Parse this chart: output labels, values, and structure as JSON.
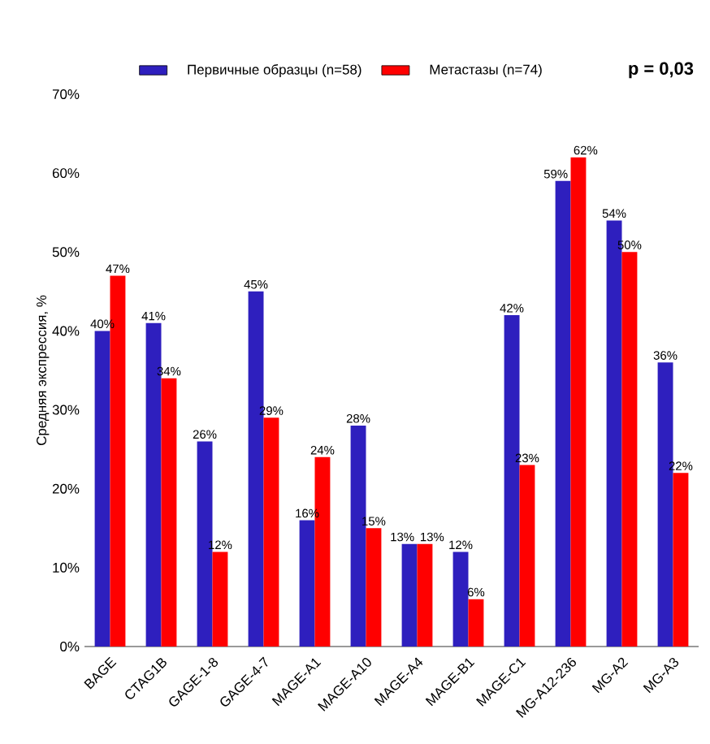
{
  "chart_data": {
    "type": "bar",
    "ylabel": "Средняя экспрессия, %",
    "categories": [
      "BAGE",
      "CTAG1B",
      "GAGE-1-8",
      "GAGE-4-7",
      "MAGE-A1",
      "MAGE-A10",
      "MAGE-A4",
      "MAGE-B1",
      "MAGE-C1",
      "MG-A12-236",
      "MG-A2",
      "MG-A3"
    ],
    "series": [
      {
        "name": "Первичные образцы (n=58)",
        "color": "#2e1fbe",
        "values": [
          40,
          41,
          26,
          45,
          16,
          28,
          13,
          12,
          42,
          59,
          54,
          36
        ],
        "value_labels": [
          "40%",
          "41%",
          "26%",
          "45%",
          "16%",
          "28%",
          "13%",
          "12%",
          "42%",
          "59%",
          "54%",
          "36%"
        ]
      },
      {
        "name": "Метастазы (n=74)",
        "color": "#ff0000",
        "values": [
          47,
          34,
          12,
          29,
          24,
          15,
          13,
          6,
          23,
          62,
          50,
          22
        ],
        "value_labels": [
          "47%",
          "34%",
          "12%",
          "29%",
          "24%",
          "15%",
          "13%",
          "6%",
          "23%",
          "62%",
          "50%",
          "22%"
        ]
      }
    ],
    "ylim": [
      0,
      70
    ],
    "yticks": [
      {
        "value": 0,
        "label": "0%"
      },
      {
        "value": 10,
        "label": "10%"
      },
      {
        "value": 20,
        "label": "20%"
      },
      {
        "value": 30,
        "label": "30%"
      },
      {
        "value": 40,
        "label": "40%"
      },
      {
        "value": 50,
        "label": "50%"
      },
      {
        "value": 60,
        "label": "60%"
      },
      {
        "value": 70,
        "label": "70%"
      }
    ],
    "legend": "top",
    "annotations": [
      "p = 0,03"
    ]
  }
}
